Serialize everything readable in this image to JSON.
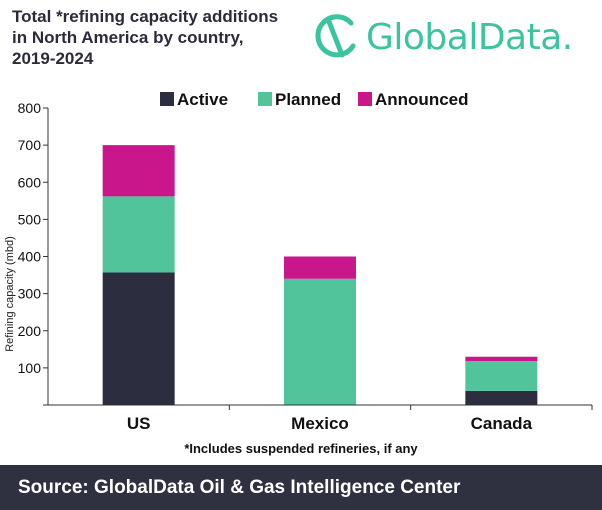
{
  "header": {
    "title_lines": [
      "Total *refining capacity additions",
      "in North America by country,",
      "2019-2024"
    ],
    "logo_text": "GlobalData.",
    "logo_color": "#3cc4a0"
  },
  "chart_data": {
    "type": "bar",
    "stacked": true,
    "categories": [
      "US",
      "Mexico",
      "Canada"
    ],
    "series": [
      {
        "name": "Active",
        "color": "#2d2d40",
        "values": [
          357,
          0,
          38
        ]
      },
      {
        "name": "Planned",
        "color": "#52c49b",
        "values": [
          205,
          340,
          80
        ]
      },
      {
        "name": "Announced",
        "color": "#c9178b",
        "values": [
          138,
          60,
          12
        ]
      }
    ],
    "ylabel": "Refining capacity (mbd)",
    "ylim": [
      0,
      800
    ],
    "yticks": [
      "0",
      "100",
      "200",
      "300",
      "400",
      "500",
      "600",
      "700",
      "800"
    ],
    "legend_position": "top-center",
    "grid": false
  },
  "footnote": "*Includes suspended refineries, if any",
  "footer": {
    "source": "Source:  GlobalData Oil & Gas Intelligence Center"
  }
}
